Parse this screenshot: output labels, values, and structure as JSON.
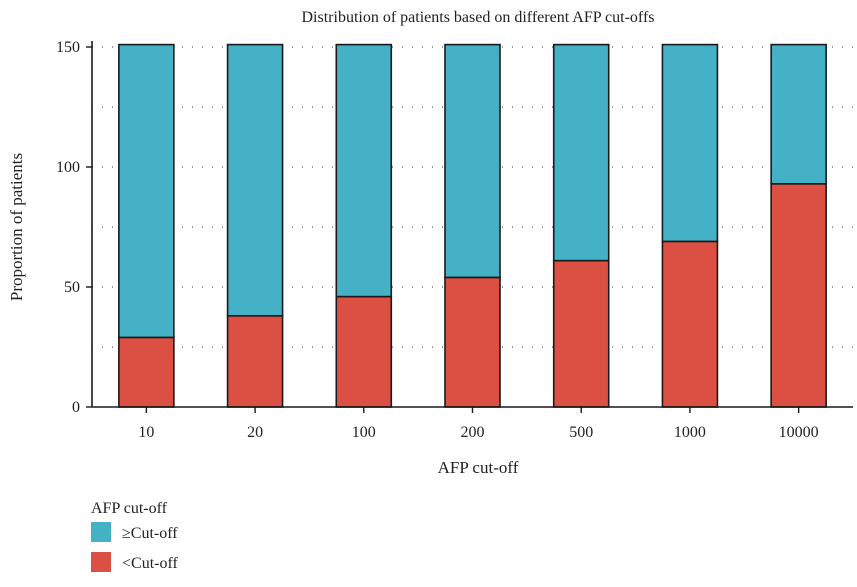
{
  "chart_data": {
    "type": "bar",
    "stacked": true,
    "title": "Distribution of patients based on different AFP cut-offs",
    "xlabel": "AFP cut-off",
    "ylabel": "Proportion of patients",
    "categories": [
      "10",
      "20",
      "100",
      "200",
      "500",
      "1000",
      "10000"
    ],
    "series": [
      {
        "name": "<Cut-off",
        "color": "#dc4f43",
        "values": [
          29,
          38,
          46,
          54,
          61,
          69,
          93
        ]
      },
      {
        "name": "≥Cut-off",
        "color": "#44b1c6",
        "values": [
          122,
          113,
          105,
          97,
          90,
          82,
          58
        ]
      }
    ],
    "ylim": [
      0,
      150
    ],
    "yticks": [
      0,
      50,
      100,
      150
    ],
    "grid": true,
    "legend": {
      "title": "AFP cut-off",
      "position": "bottom-left",
      "entries": [
        {
          "label": "≥Cut-off",
          "color": "#44b1c6"
        },
        {
          "label": "<Cut-off",
          "color": "#dc4f43"
        }
      ]
    }
  }
}
